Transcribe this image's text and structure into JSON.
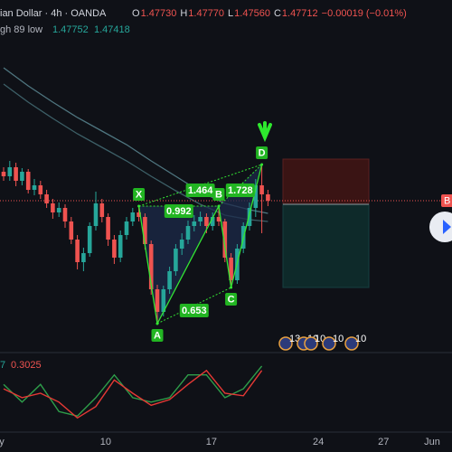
{
  "header": {
    "symbol": "ian Dollar · 4h · OANDA",
    "ohlc": [
      {
        "key": "O",
        "value": "1.47730"
      },
      {
        "key": "H",
        "value": "1.47770"
      },
      {
        "key": "L",
        "value": "1.47560"
      },
      {
        "key": "C",
        "value": "1.47712"
      }
    ],
    "change": "−0.00019 (−0.01%)",
    "indicator": {
      "name": "gh 89 low",
      "values": [
        "1.47752",
        "1.47418"
      ]
    }
  },
  "chart_data": {
    "type": "candlestick",
    "ylim": [
      1.47549,
      1.47934
    ],
    "open": [
      1.47744,
      1.47739,
      1.47749,
      1.47734,
      1.47744,
      1.47724,
      1.47729,
      1.47719,
      1.47709,
      1.47699,
      1.47704,
      1.47689,
      1.47669,
      1.47644,
      1.47654,
      1.47684,
      1.47709,
      1.47694,
      1.47669,
      1.47649,
      1.47674,
      1.47689,
      1.47699,
      1.47694,
      1.47664,
      1.47614,
      1.47589,
      1.47614,
      1.47634,
      1.47659,
      1.47669,
      1.47684,
      1.47689,
      1.47694,
      1.47684,
      1.47694,
      1.47689,
      1.47649,
      1.47624,
      1.47659,
      1.47684,
      1.47704,
      1.47729,
      1.47719
    ],
    "high": [
      1.47749,
      1.47756,
      1.47754,
      1.47748,
      1.47747,
      1.47736,
      1.47734,
      1.47724,
      1.47714,
      1.4771,
      1.47708,
      1.47694,
      1.47674,
      1.4766,
      1.47688,
      1.47722,
      1.47714,
      1.47698,
      1.47674,
      1.47679,
      1.47694,
      1.47704,
      1.47706,
      1.47698,
      1.47668,
      1.47619,
      1.47618,
      1.47639,
      1.47664,
      1.47676,
      1.4769,
      1.47696,
      1.477,
      1.47698,
      1.47699,
      1.47706,
      1.47692,
      1.47654,
      1.47664,
      1.47688,
      1.4771,
      1.47736,
      1.47752,
      1.47724
    ],
    "low": [
      1.47734,
      1.47734,
      1.47728,
      1.47729,
      1.4772,
      1.47718,
      1.47714,
      1.47704,
      1.47692,
      1.47694,
      1.47682,
      1.47664,
      1.47636,
      1.47634,
      1.4765,
      1.47679,
      1.47688,
      1.47662,
      1.47642,
      1.47644,
      1.47669,
      1.47684,
      1.47689,
      1.47658,
      1.47608,
      1.47576,
      1.47584,
      1.47609,
      1.47629,
      1.47652,
      1.47664,
      1.47678,
      1.47684,
      1.47676,
      1.47679,
      1.47684,
      1.47644,
      1.47616,
      1.4762,
      1.47654,
      1.47679,
      1.47694,
      1.47676,
      1.47706
    ],
    "close": [
      1.47739,
      1.47749,
      1.47734,
      1.47744,
      1.47724,
      1.47729,
      1.47719,
      1.47709,
      1.47699,
      1.47704,
      1.47689,
      1.47669,
      1.47644,
      1.47654,
      1.47684,
      1.47709,
      1.47694,
      1.47669,
      1.47649,
      1.47674,
      1.47689,
      1.47699,
      1.47694,
      1.47664,
      1.47614,
      1.47589,
      1.47614,
      1.47634,
      1.47659,
      1.47669,
      1.47684,
      1.47689,
      1.47694,
      1.47684,
      1.47694,
      1.47689,
      1.47649,
      1.47624,
      1.47659,
      1.47684,
      1.47704,
      1.47729,
      1.47719,
      1.47712
    ],
    "colors": {
      "up": "#26a69a",
      "down": "#ef5350"
    },
    "ema": {
      "x": [
        0,
        4,
        8,
        12,
        16,
        20,
        24,
        28,
        32,
        36,
        40,
        43
      ],
      "series": [
        {
          "color": "#4f7680",
          "values": [
            1.47859,
            1.47839,
            1.47821,
            1.47804,
            1.47789,
            1.47774,
            1.47756,
            1.47739,
            1.47722,
            1.47709,
            1.47702,
            1.47698
          ]
        },
        {
          "color": "#3d6068",
          "values": [
            1.47841,
            1.47821,
            1.47803,
            1.47786,
            1.47771,
            1.47756,
            1.47739,
            1.47723,
            1.47708,
            1.47696,
            1.47691,
            1.47689
          ]
        }
      ]
    },
    "harmonic": {
      "color": "#33e633",
      "fill": "#1c2a4a",
      "points": [
        {
          "label": "X",
          "index": 22,
          "price": 1.47706
        },
        {
          "label": "A",
          "index": 25,
          "price": 1.47576
        },
        {
          "label": "B",
          "index": 35,
          "price": 1.47706
        },
        {
          "label": "C",
          "index": 37,
          "price": 1.47616
        },
        {
          "label": "D",
          "index": 42,
          "price": 1.47752
        }
      ],
      "ratios": [
        {
          "value": 0.992,
          "points": [
            0,
            2
          ]
        },
        {
          "value": 1.464,
          "points": [
            0,
            4
          ]
        },
        {
          "value": 1.728,
          "points": [
            2,
            4
          ]
        },
        {
          "value": 0.653,
          "points": [
            1,
            3
          ]
        }
      ]
    },
    "position": {
      "stop": 1.47758,
      "entry": 1.47708,
      "target": 1.47616
    },
    "price_line": {
      "value": 1.47712,
      "label": "B"
    },
    "events": [
      "13",
      "10",
      "10",
      "10",
      "10"
    ],
    "oscillator": {
      "legend": [
        "7",
        "0.3025"
      ],
      "ylim": [
        0,
        1
      ],
      "x": [
        0,
        3,
        6,
        9,
        12,
        15,
        18,
        21,
        24,
        27,
        30,
        33,
        36,
        39,
        42
      ],
      "series": [
        {
          "color": "#2e9e4a",
          "values": [
            0.64,
            0.36,
            0.64,
            0.21,
            0.14,
            0.43,
            0.79,
            0.43,
            0.36,
            0.43,
            0.79,
            0.79,
            0.43,
            0.57,
            0.93
          ]
        },
        {
          "color": "#e53935",
          "values": [
            0.57,
            0.43,
            0.5,
            0.36,
            0.11,
            0.29,
            0.71,
            0.5,
            0.31,
            0.4,
            0.64,
            0.86,
            0.5,
            0.46,
            0.86
          ]
        }
      ]
    },
    "xticks": [
      {
        "value": -0.3,
        "label": "y"
      },
      {
        "value": 16.6,
        "label": "10"
      },
      {
        "value": 33.8,
        "label": "17"
      },
      {
        "value": 51.2,
        "label": "24"
      },
      {
        "value": 61.8,
        "label": "27"
      },
      {
        "value": 69.7,
        "label": "Jun"
      }
    ]
  }
}
